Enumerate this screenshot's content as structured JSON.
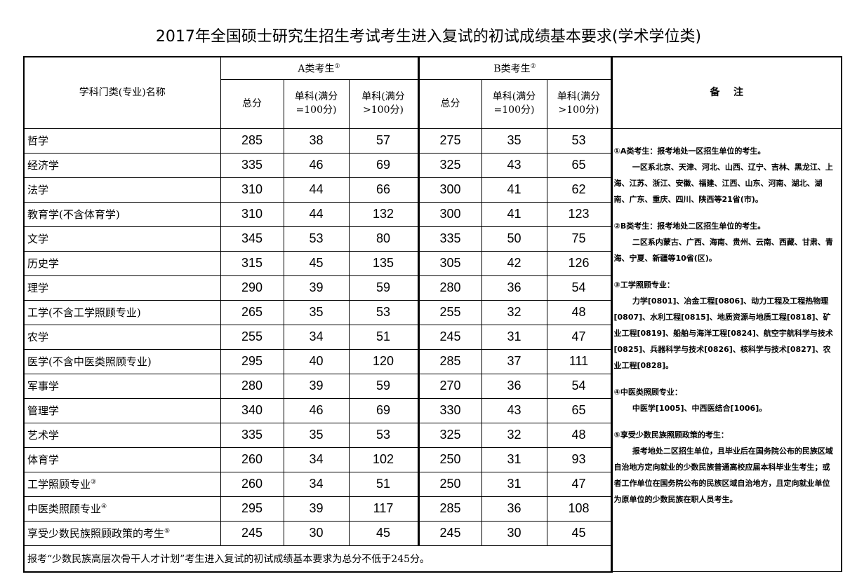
{
  "title": "2017年全国硕士研究生招生考试考生进入复试的初试成绩基本要求(学术学位类)",
  "header": {
    "subject": "学科门类(专业)名称",
    "groupA": "A类考生",
    "groupA_mark": "①",
    "groupB": "B类考生",
    "groupB_mark": "②",
    "total": "总分",
    "single100": "单科(满分=100分)",
    "singleOver100": "单科(满分>100分)",
    "notes": "备    注"
  },
  "rows": [
    {
      "name": "哲学",
      "mark": "",
      "a": [
        "285",
        "38",
        "57"
      ],
      "b": [
        "275",
        "35",
        "53"
      ]
    },
    {
      "name": "经济学",
      "mark": "",
      "a": [
        "335",
        "46",
        "69"
      ],
      "b": [
        "325",
        "43",
        "65"
      ]
    },
    {
      "name": "法学",
      "mark": "",
      "a": [
        "310",
        "44",
        "66"
      ],
      "b": [
        "300",
        "41",
        "62"
      ]
    },
    {
      "name": "教育学(不含体育学)",
      "mark": "",
      "a": [
        "310",
        "44",
        "132"
      ],
      "b": [
        "300",
        "41",
        "123"
      ]
    },
    {
      "name": "文学",
      "mark": "",
      "a": [
        "345",
        "53",
        "80"
      ],
      "b": [
        "335",
        "50",
        "75"
      ]
    },
    {
      "name": "历史学",
      "mark": "",
      "a": [
        "315",
        "45",
        "135"
      ],
      "b": [
        "305",
        "42",
        "126"
      ]
    },
    {
      "name": "理学",
      "mark": "",
      "a": [
        "290",
        "39",
        "59"
      ],
      "b": [
        "280",
        "36",
        "54"
      ]
    },
    {
      "name": "工学(不含工学照顾专业)",
      "mark": "",
      "a": [
        "265",
        "35",
        "53"
      ],
      "b": [
        "255",
        "32",
        "48"
      ]
    },
    {
      "name": "农学",
      "mark": "",
      "a": [
        "255",
        "34",
        "51"
      ],
      "b": [
        "245",
        "31",
        "47"
      ]
    },
    {
      "name": "医学(不含中医类照顾专业)",
      "mark": "",
      "a": [
        "295",
        "40",
        "120"
      ],
      "b": [
        "285",
        "37",
        "111"
      ]
    },
    {
      "name": "军事学",
      "mark": "",
      "a": [
        "280",
        "39",
        "59"
      ],
      "b": [
        "270",
        "36",
        "54"
      ]
    },
    {
      "name": "管理学",
      "mark": "",
      "a": [
        "340",
        "46",
        "69"
      ],
      "b": [
        "330",
        "43",
        "65"
      ]
    },
    {
      "name": "艺术学",
      "mark": "",
      "a": [
        "335",
        "35",
        "53"
      ],
      "b": [
        "325",
        "32",
        "48"
      ]
    },
    {
      "name": "体育学",
      "mark": "",
      "a": [
        "260",
        "34",
        "102"
      ],
      "b": [
        "250",
        "31",
        "93"
      ]
    },
    {
      "name": "工学照顾专业",
      "mark": "③",
      "a": [
        "260",
        "34",
        "51"
      ],
      "b": [
        "250",
        "31",
        "47"
      ]
    },
    {
      "name": "中医类照顾专业",
      "mark": "④",
      "a": [
        "295",
        "39",
        "117"
      ],
      "b": [
        "285",
        "36",
        "108"
      ]
    },
    {
      "name": "享受少数民族照顾政策的考生",
      "mark": "⑤",
      "a": [
        "245",
        "30",
        "45"
      ],
      "b": [
        "245",
        "30",
        "45"
      ]
    }
  ],
  "footer": "报考“少数民族高层次骨干人才计划”考生进入复试的初试成绩基本要求为总分不低于245分。",
  "notes": [
    {
      "head": "①A类考生：报考地处一区招生单位的考生。",
      "body": "一区系北京、天津、河北、山西、辽宁、吉林、黑龙江、上海、江苏、浙江、安徽、福建、江西、山东、河南、湖北、湖南、广东、重庆、四川、陕西等21省(市)。"
    },
    {
      "head": "②B类考生：报考地处二区招生单位的考生。",
      "body": "二区系内蒙古、广西、海南、贵州、云南、西藏、甘肃、青海、宁夏、新疆等10省(区)。"
    },
    {
      "head": "③工学照顾专业：",
      "body": "力学[0801]、冶金工程[0806]、动力工程及工程热物理[0807]、水利工程[0815]、地质资源与地质工程[0818]、矿业工程[0819]、船舶与海洋工程[0824]、航空宇航科学与技术[0825]、兵器科学与技术[0826]、核科学与技术[0827]、农业工程[0828]。"
    },
    {
      "head": "④中医类照顾专业：",
      "body": "中医学[1005]、中西医结合[1006]。"
    },
    {
      "head": "⑤享受少数民族照顾政策的考生：",
      "body": "报考地处二区招生单位，且毕业后在国务院公布的民族区域自治地方定向就业的少数民族普通高校应届本科毕业生考生；或者工作单位在国务院公布的民族区域自治地方，且定向就业单位为原单位的少数民族在职人员考生。"
    }
  ]
}
